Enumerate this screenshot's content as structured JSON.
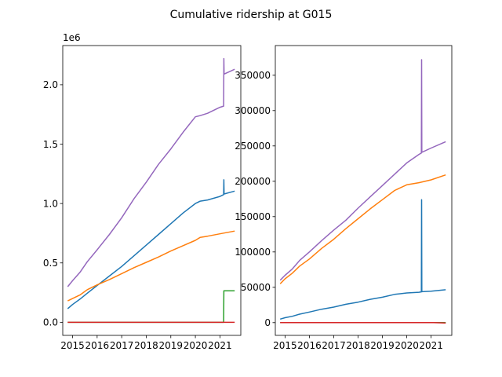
{
  "figure_title": "Cumulative ridership at G015",
  "colors": {
    "series": [
      "#1f77b4",
      "#ff7f0e",
      "#2ca02c",
      "#d62728",
      "#9467bd"
    ],
    "axes": "#000000",
    "background": "#ffffff"
  },
  "chart_data": [
    {
      "type": "line",
      "title": "",
      "xlabel": "",
      "ylabel": "",
      "offset_text": "1e6",
      "xlim": [
        2014.6,
        2021.85
      ],
      "ylim": [
        -110000,
        2330000
      ],
      "xticks": [
        2015,
        2016,
        2017,
        2018,
        2019,
        2020,
        2021
      ],
      "xtick_labels": [
        "2015",
        "2016",
        "2017",
        "2018",
        "2019",
        "2020",
        "2021"
      ],
      "yticks": [
        0,
        500000,
        1000000,
        1500000,
        2000000
      ],
      "ytick_labels": [
        "0.0",
        "0.5",
        "1.0",
        "1.5",
        "2.0"
      ],
      "grid": false,
      "legend": "none",
      "series": [
        {
          "points": [
            [
              2014.8,
              115000
            ],
            [
              2015.0,
              150000
            ],
            [
              2015.3,
              195000
            ],
            [
              2015.6,
              245000
            ],
            [
              2016.0,
              310000
            ],
            [
              2016.5,
              390000
            ],
            [
              2017.0,
              470000
            ],
            [
              2017.5,
              560000
            ],
            [
              2018.0,
              650000
            ],
            [
              2018.5,
              740000
            ],
            [
              2019.0,
              830000
            ],
            [
              2019.5,
              920000
            ],
            [
              2020.0,
              1000000
            ],
            [
              2020.2,
              1020000
            ],
            [
              2020.5,
              1030000
            ],
            [
              2021.0,
              1060000
            ],
            [
              2021.15,
              1075000
            ],
            [
              2021.16,
              1200000
            ],
            [
              2021.17,
              1080000
            ],
            [
              2021.6,
              1105000
            ]
          ]
        },
        {
          "points": [
            [
              2014.8,
              180000
            ],
            [
              2015.0,
              200000
            ],
            [
              2015.3,
              230000
            ],
            [
              2015.6,
              275000
            ],
            [
              2016.0,
              315000
            ],
            [
              2016.5,
              360000
            ],
            [
              2017.0,
              410000
            ],
            [
              2017.5,
              460000
            ],
            [
              2018.0,
              505000
            ],
            [
              2018.5,
              550000
            ],
            [
              2019.0,
              600000
            ],
            [
              2019.5,
              645000
            ],
            [
              2020.0,
              690000
            ],
            [
              2020.2,
              715000
            ],
            [
              2020.5,
              725000
            ],
            [
              2021.0,
              745000
            ],
            [
              2021.6,
              768000
            ]
          ]
        },
        {
          "points": [
            [
              2014.8,
              0
            ],
            [
              2021.15,
              0
            ],
            [
              2021.16,
              265000
            ],
            [
              2021.6,
              265000
            ]
          ]
        },
        {
          "points": [
            [
              2014.8,
              0
            ],
            [
              2021.6,
              0
            ]
          ]
        },
        {
          "points": [
            [
              2014.8,
              300000
            ],
            [
              2015.0,
              350000
            ],
            [
              2015.3,
              420000
            ],
            [
              2015.6,
              510000
            ],
            [
              2016.0,
              610000
            ],
            [
              2016.5,
              740000
            ],
            [
              2017.0,
              880000
            ],
            [
              2017.5,
              1040000
            ],
            [
              2018.0,
              1180000
            ],
            [
              2018.5,
              1330000
            ],
            [
              2019.0,
              1460000
            ],
            [
              2019.5,
              1600000
            ],
            [
              2020.0,
              1730000
            ],
            [
              2020.2,
              1740000
            ],
            [
              2020.5,
              1760000
            ],
            [
              2021.0,
              1810000
            ],
            [
              2021.15,
              1820000
            ],
            [
              2021.16,
              2220000
            ],
            [
              2021.17,
              2090000
            ],
            [
              2021.6,
              2130000
            ]
          ]
        }
      ]
    },
    {
      "type": "line",
      "title": "",
      "xlabel": "",
      "ylabel": "",
      "xlim": [
        2014.6,
        2021.85
      ],
      "ylim": [
        -18000,
        392000
      ],
      "xticks": [
        2015,
        2016,
        2017,
        2018,
        2019,
        2020,
        2021
      ],
      "xtick_labels": [
        "2015",
        "2016",
        "2017",
        "2018",
        "2019",
        "2020",
        "2021"
      ],
      "yticks": [
        0,
        50000,
        100000,
        150000,
        200000,
        250000,
        300000,
        350000
      ],
      "ytick_labels": [
        "0",
        "50000",
        "100000",
        "150000",
        "200000",
        "250000",
        "300000",
        "350000"
      ],
      "grid": false,
      "legend": "none",
      "series": [
        {
          "points": [
            [
              2014.8,
              5000
            ],
            [
              2015.0,
              7000
            ],
            [
              2015.3,
              9000
            ],
            [
              2015.6,
              12000
            ],
            [
              2016.0,
              15000
            ],
            [
              2016.5,
              19000
            ],
            [
              2017.0,
              22000
            ],
            [
              2017.5,
              26000
            ],
            [
              2018.0,
              29000
            ],
            [
              2018.5,
              33000
            ],
            [
              2019.0,
              36000
            ],
            [
              2019.5,
              40000
            ],
            [
              2020.0,
              42000
            ],
            [
              2020.5,
              43000
            ],
            [
              2020.6,
              43500
            ],
            [
              2020.61,
              174000
            ],
            [
              2020.62,
              43800
            ],
            [
              2021.0,
              44500
            ],
            [
              2021.6,
              46500
            ]
          ]
        },
        {
          "points": [
            [
              2014.8,
              55000
            ],
            [
              2015.0,
              62000
            ],
            [
              2015.3,
              70000
            ],
            [
              2015.6,
              80000
            ],
            [
              2016.0,
              90000
            ],
            [
              2016.5,
              105000
            ],
            [
              2017.0,
              118000
            ],
            [
              2017.5,
              133000
            ],
            [
              2018.0,
              147000
            ],
            [
              2018.5,
              161000
            ],
            [
              2019.0,
              174000
            ],
            [
              2019.5,
              187000
            ],
            [
              2020.0,
              195000
            ],
            [
              2020.5,
              198000
            ],
            [
              2021.0,
              202000
            ],
            [
              2021.6,
              209000
            ]
          ]
        },
        {
          "points": [
            [
              2014.8,
              0
            ],
            [
              2021.6,
              0
            ]
          ]
        },
        {
          "points": [
            [
              2014.8,
              0
            ],
            [
              2021.1,
              0
            ],
            [
              2021.6,
              -500
            ]
          ]
        },
        {
          "points": [
            [
              2014.8,
              60000
            ],
            [
              2015.0,
              67000
            ],
            [
              2015.3,
              76000
            ],
            [
              2015.6,
              88000
            ],
            [
              2016.0,
              100000
            ],
            [
              2016.5,
              116000
            ],
            [
              2017.0,
              131000
            ],
            [
              2017.5,
              145000
            ],
            [
              2018.0,
              162000
            ],
            [
              2018.5,
              178000
            ],
            [
              2019.0,
              194000
            ],
            [
              2019.5,
              210000
            ],
            [
              2020.0,
              226000
            ],
            [
              2020.5,
              238000
            ],
            [
              2020.6,
              240000
            ],
            [
              2020.61,
              372000
            ],
            [
              2020.62,
              241000
            ],
            [
              2021.0,
              247000
            ],
            [
              2021.6,
              256000
            ]
          ]
        }
      ]
    }
  ]
}
